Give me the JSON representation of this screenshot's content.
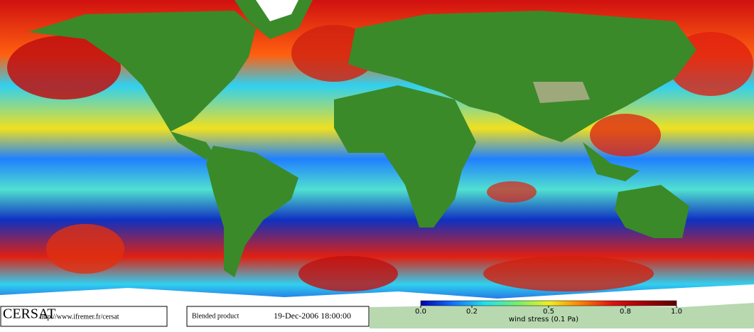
{
  "footer": {
    "logo": "CERSAT",
    "url": "http://www.ifremer.fr/cersat",
    "product": "Blended product",
    "date": "19-Dec-2006 18:00:00"
  },
  "colorbar": {
    "label": "wind stress (0.1 Pa)",
    "lim": [
      0,
      1
    ],
    "ticks": [
      {
        "value": 0,
        "label": "0.0"
      },
      0.2,
      0.5,
      0.8,
      {
        "value": 1,
        "label": "1.0"
      }
    ],
    "colors": [
      "#0000b0",
      "#1070ff",
      "#20e0f0",
      "#70f070",
      "#f0f020",
      "#ff8000",
      "#e01010",
      "#a00000",
      "#600000"
    ]
  }
}
